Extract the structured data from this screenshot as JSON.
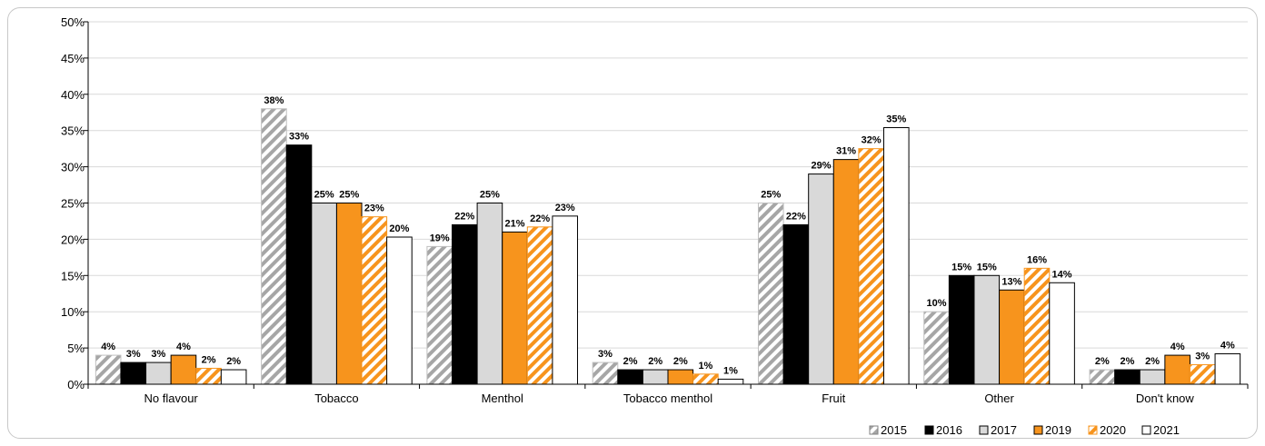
{
  "chart_data": {
    "type": "bar",
    "categories": [
      "No flavour",
      "Tobacco",
      "Menthol",
      "Tobacco menthol",
      "Fruit",
      "Other",
      "Don't know"
    ],
    "ylim": [
      0,
      50
    ],
    "yticks": [
      "0%",
      "5%",
      "10%",
      "15%",
      "20%",
      "25%",
      "30%",
      "35%",
      "40%",
      "45%",
      "50%"
    ],
    "grid": true,
    "legend_position": "bottom-right",
    "series": [
      {
        "name": "2015",
        "values": [
          4,
          38,
          19,
          3,
          25,
          10,
          2
        ],
        "labels": [
          "4%",
          "38%",
          "19%",
          "3%",
          "25%",
          "10%",
          "2%"
        ],
        "fill": "#d9d9d9",
        "hatch": "#a6a6a6",
        "stroke": "#bfbfbf"
      },
      {
        "name": "2016",
        "values": [
          3,
          33,
          22,
          2,
          22,
          15,
          2
        ],
        "labels": [
          "3%",
          "33%",
          "22%",
          "2%",
          "22%",
          "15%",
          "2%"
        ],
        "fill": "#000000",
        "stroke": "#000000"
      },
      {
        "name": "2017",
        "values": [
          3,
          25,
          25,
          2,
          29,
          15,
          2
        ],
        "labels": [
          "3%",
          "25%",
          "25%",
          "2%",
          "29%",
          "15%",
          "2%"
        ],
        "fill": "#d9d9d9",
        "stroke": "#000000"
      },
      {
        "name": "2019",
        "values": [
          4,
          25,
          21,
          2,
          31,
          13,
          4
        ],
        "labels": [
          "4%",
          "25%",
          "21%",
          "2%",
          "31%",
          "13%",
          "4%"
        ],
        "fill": "#f7941d",
        "stroke": "#000000"
      },
      {
        "name": "2020",
        "values": [
          2.2,
          23.1,
          21.7,
          1.4,
          32.5,
          16.0,
          2.7
        ],
        "labels": [
          "2%",
          "23%",
          "22%",
          "1%",
          "32%",
          "16%",
          "3%"
        ],
        "fill": "#ffffff",
        "hatch": "#f7941d",
        "stroke": "#f7941d"
      },
      {
        "name": "2021",
        "values": [
          2,
          20.3,
          23.2,
          0.7,
          35.4,
          14,
          4.2
        ],
        "labels": [
          "2%",
          "20%",
          "23%",
          "1%",
          "35%",
          "14%",
          "4%"
        ],
        "fill": "#ffffff",
        "stroke": "#000000"
      }
    ]
  }
}
